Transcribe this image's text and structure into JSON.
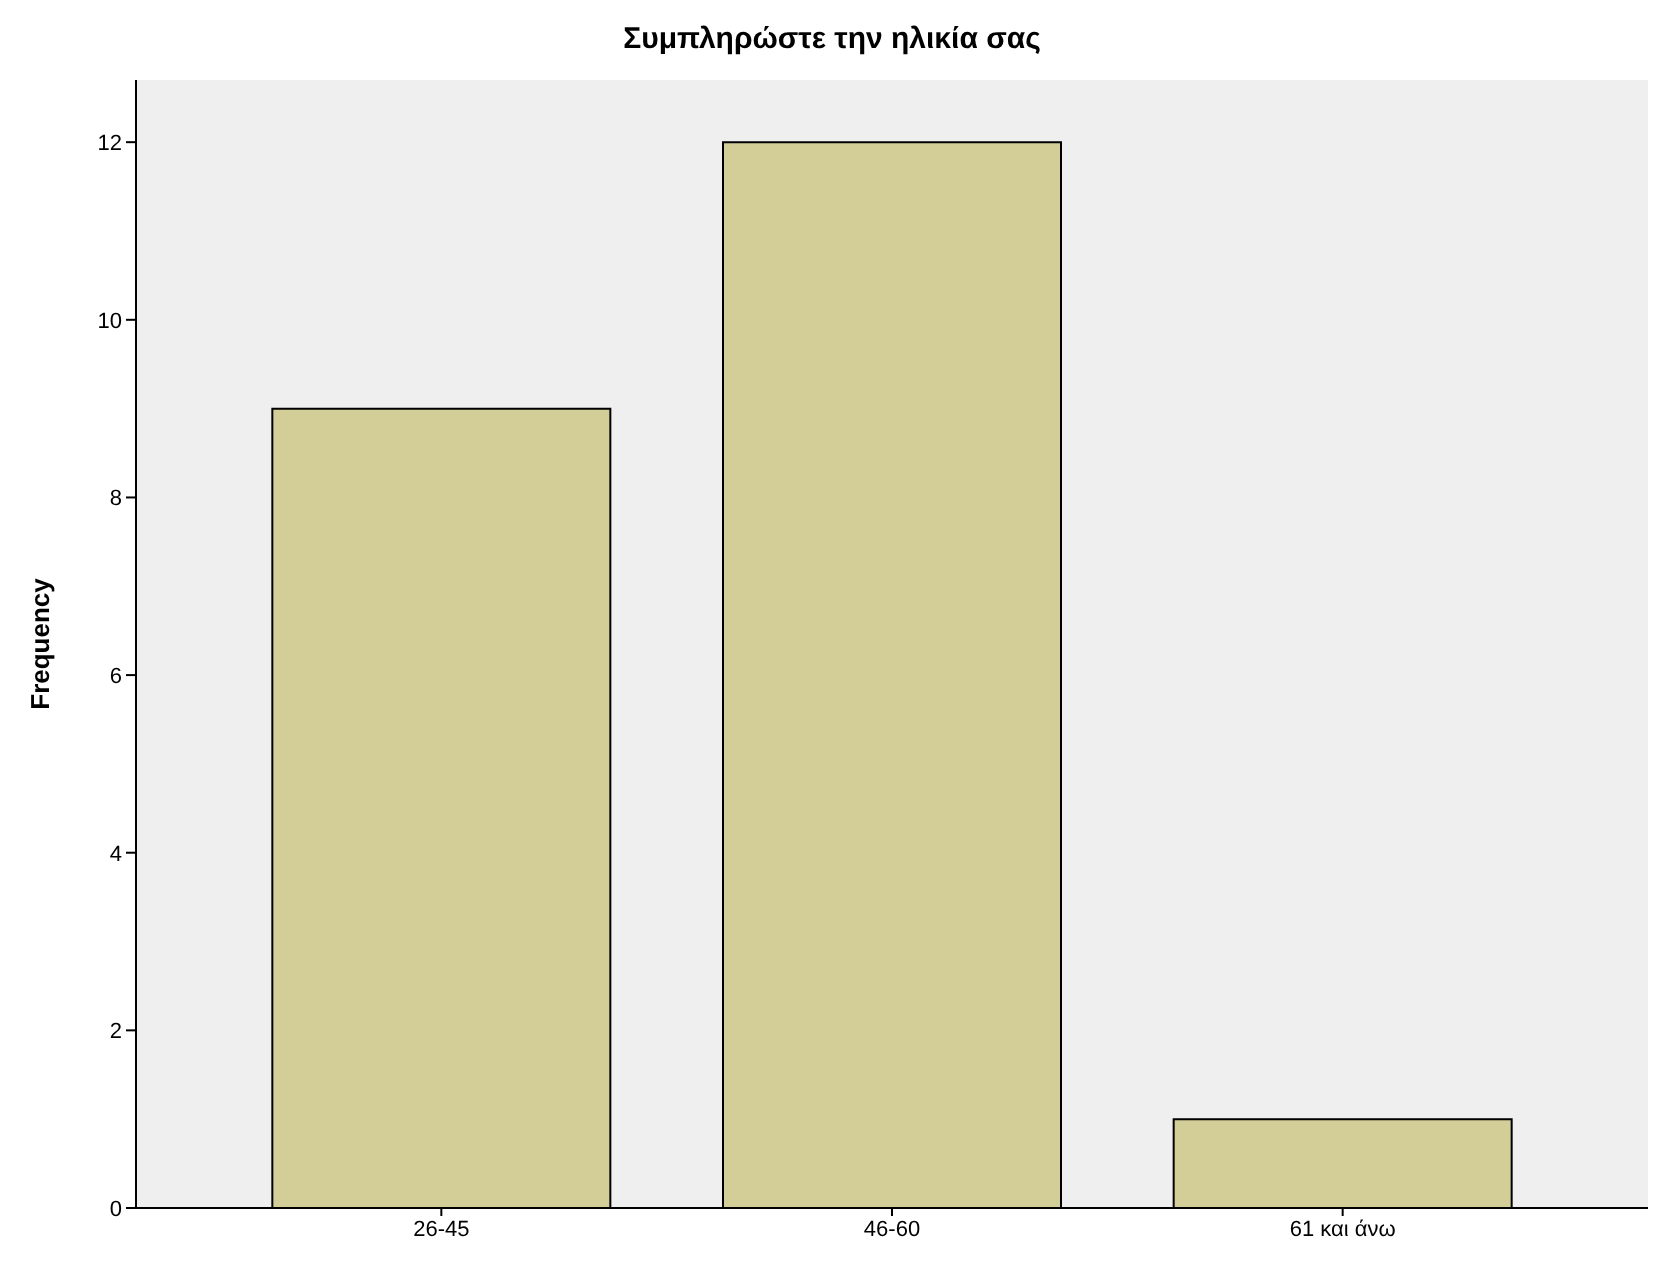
{
  "chart_data": {
    "type": "bar",
    "title": "Συμπληρώστε την ηλικία σας",
    "ylabel": "Frequency",
    "categories": [
      "26-45",
      "46-60",
      "61 και άνω"
    ],
    "values": [
      9,
      12,
      1
    ],
    "color": "#d3ce97",
    "ylim": [
      0,
      12.7
    ],
    "yticks": [
      0,
      2,
      4,
      6,
      8,
      10,
      12
    ],
    "grid": false,
    "legend": false
  }
}
